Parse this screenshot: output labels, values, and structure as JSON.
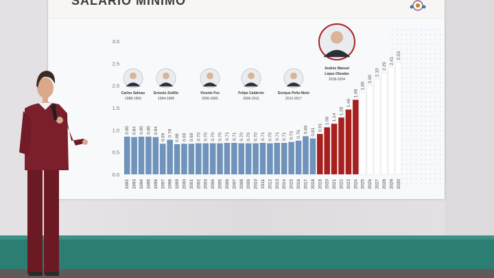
{
  "slide": {
    "title": "SALARIO MÍNIMO"
  },
  "presidents": [
    {
      "name": "Carlos Salinas",
      "years": "1988-1993"
    },
    {
      "name": "Ernesto Zedillo",
      "years": "1994-1999"
    },
    {
      "name": "Vicente Fox",
      "years": "2000-2005"
    },
    {
      "name": "Felipe Calderón",
      "years": "2006-2011"
    },
    {
      "name": "Enrique Peña Nieto",
      "years": "2012-2017"
    },
    {
      "name": "Andrés Manuel López Obrador",
      "years": "2018-2024"
    }
  ],
  "colors": {
    "historic": "#6f93ba",
    "current": "#a8201e",
    "projected": "#ffffff",
    "stage": "#2d7e72"
  },
  "chart_data": {
    "type": "bar",
    "categories": [
      "1992",
      "1993",
      "1994",
      "1995",
      "1996",
      "1997",
      "1998",
      "1999",
      "2000",
      "2001",
      "2002",
      "2003",
      "2004",
      "2005",
      "2006",
      "2007",
      "2008",
      "2009",
      "2010",
      "2011",
      "2012",
      "2013",
      "2014",
      "2015",
      "2016",
      "2017",
      "2018",
      "2019",
      "2020",
      "2021",
      "2022",
      "2023",
      "2024",
      "2025",
      "2026",
      "2027",
      "2028",
      "2029",
      "2030"
    ],
    "values": [
      0.85,
      0.84,
      0.85,
      0.85,
      0.84,
      0.69,
      0.78,
      0.68,
      0.69,
      0.69,
      0.7,
      0.7,
      0.7,
      0.7,
      0.71,
      0.71,
      0.7,
      0.7,
      0.7,
      0.71,
      0.7,
      0.71,
      0.71,
      0.73,
      0.76,
      0.86,
      0.81,
      0.91,
      1.06,
      1.14,
      1.28,
      1.46,
      1.68,
      1.85,
      2.0,
      2.15,
      2.29,
      2.41,
      2.53
    ],
    "labels": [
      "0.85",
      "0.84",
      "0.85",
      "0.85",
      "0.84",
      "0.69",
      "0.78",
      "0.68",
      "0.69",
      "0.69",
      "0.70",
      "0.70",
      "0.70",
      "0.70",
      "0.71",
      "0.71",
      "0.70",
      "0.70",
      "0.70",
      "0.71",
      "0.70",
      "0.71",
      "0.71",
      "0.73",
      "0.76",
      "0.86",
      "0.81",
      "0.91",
      "1.06",
      "1.14",
      "1.28",
      "1.46",
      "1.68",
      "1.85",
      "2.00",
      "2.15",
      "2.29",
      "2.41",
      "2.53"
    ],
    "yticks": [
      "0.0",
      "0.5",
      "1.0",
      "1.5",
      "2.0",
      "2.5",
      "3.0"
    ],
    "ylim": [
      0,
      3.0
    ],
    "bar_groups": {
      "historic": "1992-2018",
      "current": "2019-2024",
      "projected": "2025-2030"
    }
  }
}
